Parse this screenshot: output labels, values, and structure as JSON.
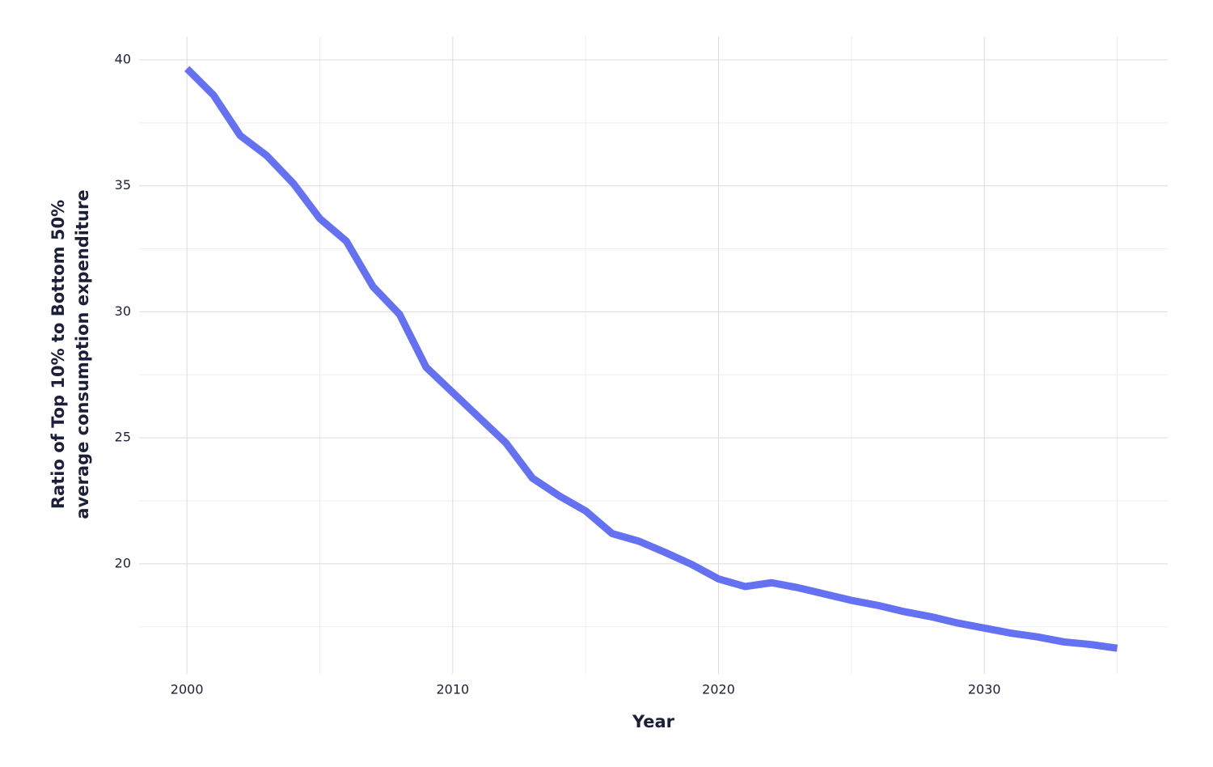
{
  "chart_data": {
    "type": "line",
    "xlabel": "Year",
    "ylabel": [
      "Ratio of Top 10% to Bottom 50%",
      "average consumption expenditure"
    ],
    "x": [
      2000,
      2001,
      2002,
      2003,
      2004,
      2005,
      2006,
      2007,
      2008,
      2009,
      2010,
      2011,
      2012,
      2013,
      2014,
      2015,
      2016,
      2017,
      2018,
      2019,
      2020,
      2021,
      2022,
      2023,
      2024,
      2025,
      2026,
      2027,
      2028,
      2029,
      2030,
      2031,
      2032,
      2033,
      2034,
      2035
    ],
    "series": [
      {
        "name": "Ratio",
        "color": "#6471f2",
        "values": [
          39.65,
          38.6,
          37.0,
          36.2,
          35.1,
          33.7,
          32.8,
          31.0,
          29.9,
          27.8,
          26.8,
          25.8,
          24.8,
          23.4,
          22.7,
          22.1,
          21.2,
          20.9,
          20.45,
          19.97,
          19.4,
          19.1,
          19.25,
          19.05,
          18.8,
          18.55,
          18.35,
          18.1,
          17.9,
          17.65,
          17.45,
          17.25,
          17.1,
          16.9,
          16.8,
          16.65
        ]
      }
    ],
    "xlim": [
      1998.2,
      2036.9
    ],
    "xticks": [
      2000,
      2010,
      2020,
      2030
    ],
    "xminor": [
      2005,
      2015,
      2025,
      2035
    ],
    "ylim": [
      15.63,
      40.93
    ],
    "yticks": [
      20,
      25,
      30,
      35,
      40
    ],
    "yminor": [
      17.5,
      22.5,
      27.5,
      32.5,
      37.5
    ],
    "grid": true
  }
}
